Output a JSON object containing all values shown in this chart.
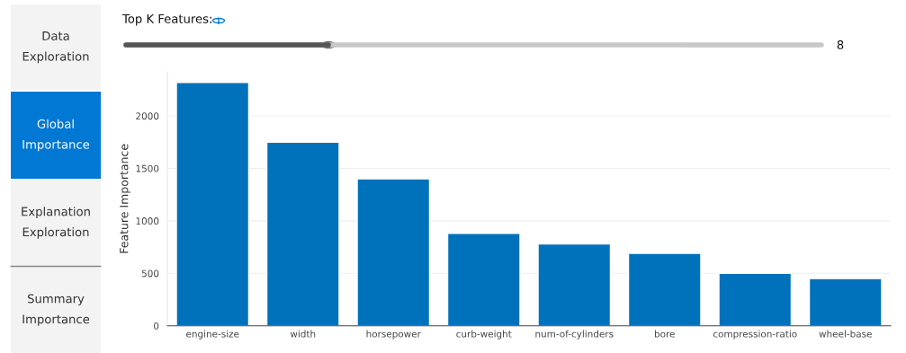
{
  "chart_data": {
    "type": "bar",
    "categories": [
      "engine-size",
      "width",
      "horsepower",
      "curb-weight",
      "num-of-cylinders",
      "bore",
      "compression-ratio",
      "wheel-base"
    ],
    "values": [
      2320,
      1750,
      1400,
      880,
      780,
      690,
      500,
      450
    ],
    "color": "#0072bc",
    "ylabel": "Feature Importance",
    "ylim": [
      0,
      2420
    ],
    "yticks": [
      0,
      500,
      1000,
      1500,
      2000
    ],
    "grid": "y",
    "annotations": [
      "Data\nExploration",
      "Global\nImportance",
      "Explanation\nExploration",
      "Summary\nImportance",
      "Top K Features:",
      "8"
    ]
  }
}
